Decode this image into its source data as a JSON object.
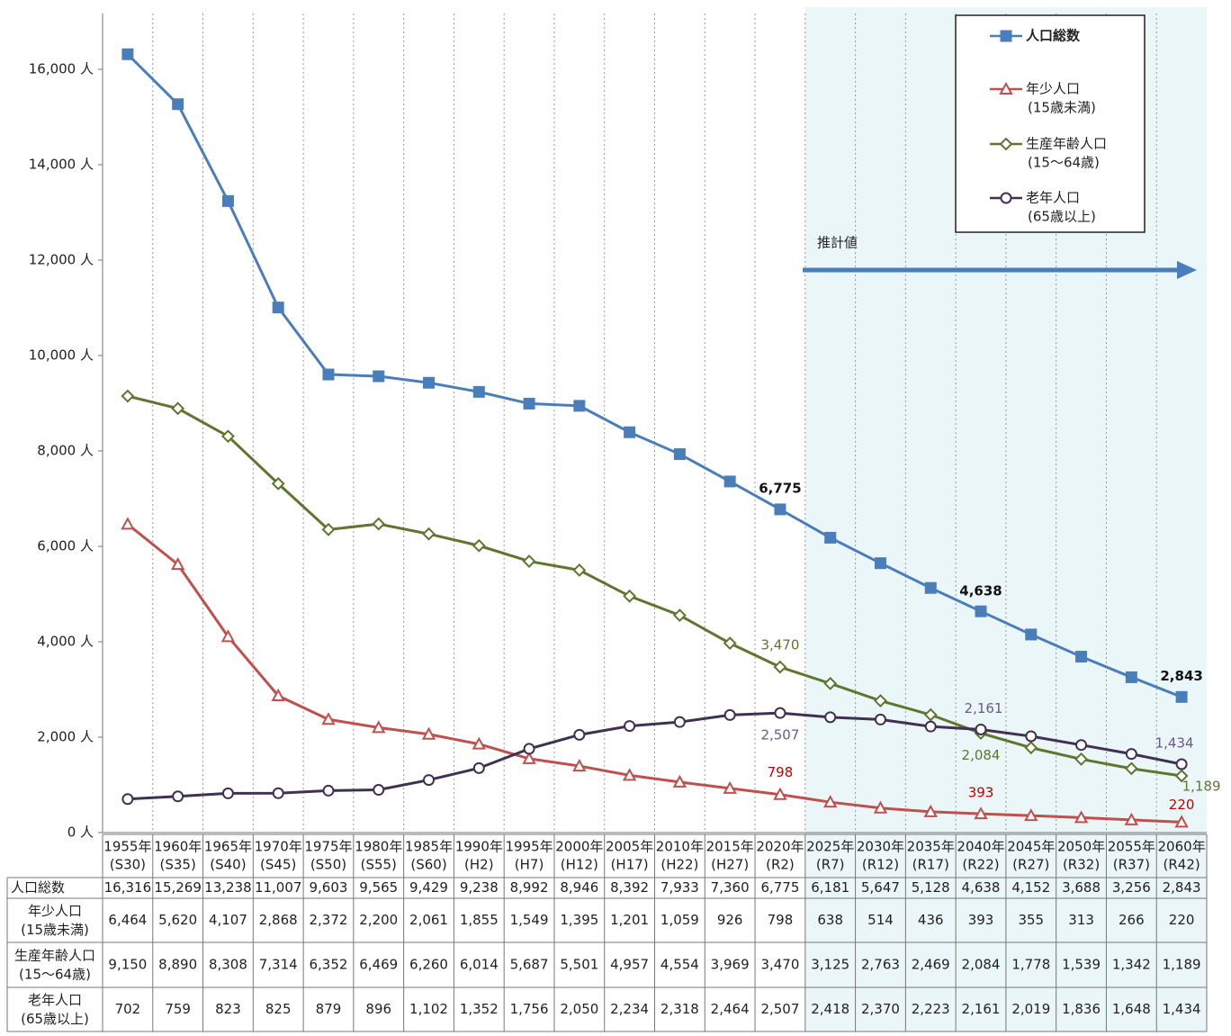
{
  "chart_data": {
    "type": "line",
    "categories": [
      "1955年",
      "1960年",
      "1965年",
      "1970年",
      "1975年",
      "1980年",
      "1985年",
      "1990年",
      "1995年",
      "2000年",
      "2005年",
      "2010年",
      "2015年",
      "2020年",
      "2025年",
      "2030年",
      "2035年",
      "2040年",
      "2045年",
      "2050年",
      "2055年",
      "2060年"
    ],
    "category_eras": [
      "(S30)",
      "(S35)",
      "(S40)",
      "(S45)",
      "(S50)",
      "(S55)",
      "(S60)",
      "(H2)",
      "(H7)",
      "(H12)",
      "(H17)",
      "(H22)",
      "(H27)",
      "(R2)",
      "(R7)",
      "(R12)",
      "(R17)",
      "(R22)",
      "(R27)",
      "(R32)",
      "(R37)",
      "(R42)"
    ],
    "projection": {
      "label": "推計値",
      "from": "2025年"
    },
    "ylim": [
      0,
      17000
    ],
    "yticks": [
      {
        "value": 0,
        "label": "0 人"
      },
      {
        "value": 2000,
        "label": "2,000 人"
      },
      {
        "value": 4000,
        "label": "4,000 人"
      },
      {
        "value": 6000,
        "label": "6,000 人"
      },
      {
        "value": 8000,
        "label": "8,000 人"
      },
      {
        "value": 10000,
        "label": "10,000 人"
      },
      {
        "value": 12000,
        "label": "12,000 人"
      },
      {
        "value": 14000,
        "label": "14,000 人"
      },
      {
        "value": 16000,
        "label": "16,000 人"
      }
    ],
    "series": [
      {
        "name": "人口総数",
        "color": "#4a7ebb",
        "marker": "square",
        "values": [
          16316,
          15269,
          13238,
          11007,
          9603,
          9565,
          9429,
          9238,
          8992,
          8946,
          8392,
          7933,
          7360,
          6775,
          6181,
          5647,
          5128,
          4638,
          4152,
          3688,
          3256,
          2843
        ],
        "value_labels": [
          "16,316",
          "15,269",
          "13,238",
          "11,007",
          "9,603",
          "9,565",
          "9,429",
          "9,238",
          "8,992",
          "8,946",
          "8,392",
          "7,933",
          "7,360",
          "6,775",
          "6,181",
          "5,647",
          "5,128",
          "4,638",
          "4,152",
          "3,688",
          "3,256",
          "2,843"
        ]
      },
      {
        "name": "年少人口",
        "subname": "(15歳未満)",
        "color": "#c0504d",
        "marker": "triangle",
        "values": [
          6464,
          5620,
          4107,
          2868,
          2372,
          2200,
          2061,
          1855,
          1549,
          1395,
          1201,
          1059,
          926,
          798,
          638,
          514,
          436,
          393,
          355,
          313,
          266,
          220
        ],
        "value_labels": [
          "6,464",
          "5,620",
          "4,107",
          "2,868",
          "2,372",
          "2,200",
          "2,061",
          "1,855",
          "1,549",
          "1,395",
          "1,201",
          "1,059",
          "926",
          "798",
          "638",
          "514",
          "436",
          "393",
          "355",
          "313",
          "266",
          "220"
        ]
      },
      {
        "name": "生産年齢人口",
        "subname": "(15～64歳)",
        "color": "#5f7530",
        "marker": "diamond",
        "values": [
          9150,
          8890,
          8308,
          7314,
          6352,
          6469,
          6260,
          6014,
          5687,
          5501,
          4957,
          4554,
          3969,
          3470,
          3125,
          2763,
          2469,
          2084,
          1778,
          1539,
          1342,
          1189
        ],
        "value_labels": [
          "9,150",
          "8,890",
          "8,308",
          "7,314",
          "6,352",
          "6,469",
          "6,260",
          "6,014",
          "5,687",
          "5,501",
          "4,957",
          "4,554",
          "3,969",
          "3,470",
          "3,125",
          "2,763",
          "2,469",
          "2,084",
          "1,778",
          "1,539",
          "1,342",
          "1,189"
        ]
      },
      {
        "name": "老年人口",
        "subname": "(65歳以上)",
        "color": "#403152",
        "marker": "circle",
        "values": [
          702,
          759,
          823,
          825,
          879,
          896,
          1102,
          1352,
          1756,
          2050,
          2234,
          2318,
          2464,
          2507,
          2418,
          2370,
          2223,
          2161,
          2019,
          1836,
          1648,
          1434
        ],
        "value_labels": [
          "702",
          "759",
          "823",
          "825",
          "879",
          "896",
          "1,102",
          "1,352",
          "1,756",
          "2,050",
          "2,234",
          "2,318",
          "2,464",
          "2,507",
          "2,418",
          "2,370",
          "2,223",
          "2,161",
          "2,019",
          "1,836",
          "1,648",
          "1,434"
        ]
      }
    ]
  }
}
